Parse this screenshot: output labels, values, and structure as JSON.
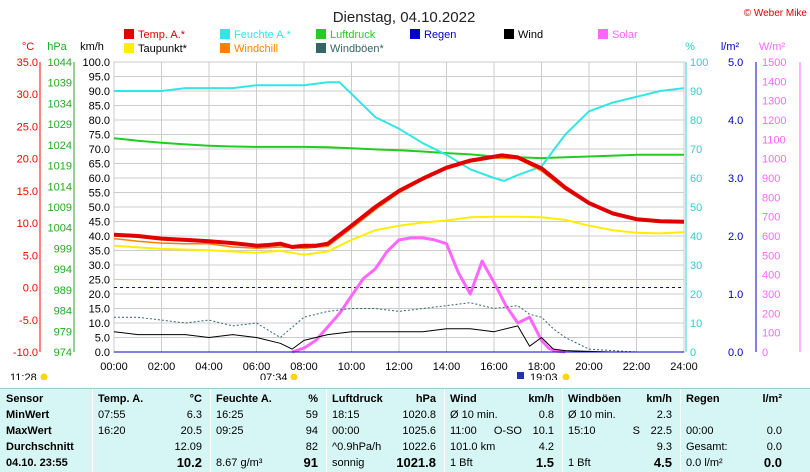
{
  "title": "Dienstag, 04.10.2022",
  "copyright": "© Weber Mike",
  "legend": [
    {
      "label": "Temp. A.*",
      "color": "#e00000"
    },
    {
      "label": "Feuchte A.*",
      "color": "#33e6e6"
    },
    {
      "label": "Luftdruck",
      "color": "#22cc22"
    },
    {
      "label": "Regen",
      "color": "#0000cc"
    },
    {
      "label": "Wind",
      "color": "#000000"
    },
    {
      "label": "Solar",
      "color": "#ff66ff"
    },
    {
      "label": "Taupunkt*",
      "color": "#ffee00"
    },
    {
      "label": "Windchill",
      "color": "#ff8000"
    },
    {
      "label": "Windböen*",
      "color": "#336666"
    }
  ],
  "axes": {
    "temp": {
      "unit": "°C",
      "color": "#ff0000",
      "ticks": [
        "35.0",
        "30.0",
        "25.0",
        "20.0",
        "15.0",
        "10.0",
        "5.0",
        "0.0",
        "-5.0",
        "-10.0"
      ]
    },
    "pressure": {
      "unit": "hPa",
      "color": "#22aa22",
      "ticks": [
        "1044",
        "1039",
        "1034",
        "1029",
        "1024",
        "1019",
        "1014",
        "1009",
        "1004",
        "999",
        "994",
        "989",
        "984",
        "979",
        "974"
      ]
    },
    "wind": {
      "unit": "km/h",
      "color": "#000000",
      "ticks": [
        "100.0",
        "95.0",
        "90.0",
        "85.0",
        "80.0",
        "75.0",
        "70.0",
        "65.0",
        "60.0",
        "55.0",
        "50.0",
        "45.0",
        "40.0",
        "35.0",
        "30.0",
        "25.0",
        "20.0",
        "15.0",
        "10.0",
        "5.0",
        "0.0"
      ]
    },
    "humidity": {
      "unit": "%",
      "color": "#33cccc",
      "ticks": [
        "100",
        "90",
        "80",
        "70",
        "60",
        "50",
        "40",
        "30",
        "20",
        "10",
        "0"
      ]
    },
    "rain": {
      "unit": "l/m²",
      "color": "#0000cc",
      "ticks": [
        "5.0",
        "4.0",
        "3.0",
        "2.0",
        "1.0",
        "0.0"
      ]
    },
    "solar": {
      "unit": "W/m²",
      "color": "#ff66ff",
      "ticks": [
        "1500",
        "1400",
        "1300",
        "1200",
        "1100",
        "1000",
        "900",
        "800",
        "700",
        "600",
        "500",
        "400",
        "300",
        "200",
        "100",
        "0"
      ]
    },
    "time": {
      "ticks": [
        "00:00",
        "02:00",
        "04:00",
        "06:00",
        "08:00",
        "10:00",
        "12:00",
        "14:00",
        "16:00",
        "18:00",
        "20:00",
        "22:00",
        "24:00"
      ]
    }
  },
  "sun": {
    "moonrise": "11:28",
    "sunrise": "07:34",
    "sunset": "19:03"
  },
  "chart_data": {
    "type": "line",
    "x_unit": "hours",
    "xlim": [
      0,
      24
    ],
    "series": [
      {
        "name": "Temp. A.*",
        "axis": "temp",
        "color": "#e00000",
        "x": [
          0,
          1,
          2,
          3,
          4,
          5,
          6,
          6.5,
          7,
          7.5,
          8,
          8.5,
          9,
          10,
          11,
          12,
          13,
          14,
          15,
          16,
          16.33,
          17,
          18,
          19,
          20,
          21,
          22,
          23,
          24
        ],
        "y": [
          8.2,
          8,
          7.6,
          7.4,
          7.2,
          6.9,
          6.5,
          6.6,
          6.8,
          6.3,
          6.5,
          6.5,
          6.8,
          9.6,
          12.5,
          15,
          16.9,
          18.6,
          19.7,
          20.3,
          20.5,
          20.2,
          18.5,
          15.5,
          13.1,
          11.5,
          10.6,
          10.3,
          10.2
        ]
      },
      {
        "name": "Taupunkt*",
        "axis": "temp",
        "color": "#ffee00",
        "x": [
          0,
          2,
          4,
          6,
          7,
          8,
          9,
          10,
          11,
          12,
          13,
          14,
          15,
          16,
          17,
          18,
          19,
          20,
          21,
          22,
          23,
          24
        ],
        "y": [
          6.5,
          6,
          5.8,
          5.4,
          5.7,
          5.1,
          5.6,
          7.4,
          8.9,
          9.6,
          10.1,
          10.4,
          10.9,
          11,
          11,
          10.9,
          10.5,
          9.6,
          8.9,
          8.5,
          8.4,
          8.6
        ]
      },
      {
        "name": "Windchill",
        "axis": "temp",
        "color": "#ff8000",
        "x": [
          0,
          1,
          2,
          3,
          4,
          5,
          6,
          7,
          8,
          9,
          10,
          11,
          12,
          13,
          14,
          15,
          16,
          17,
          18,
          19,
          20,
          21,
          22,
          23,
          24
        ],
        "y": [
          7.6,
          7.2,
          6.9,
          6.8,
          6.8,
          6.3,
          6.1,
          6.3,
          6.1,
          6.4,
          9.2,
          12.1,
          14.7,
          16.7,
          18.4,
          19.5,
          20.1,
          20,
          18.1,
          15.2,
          13,
          11.4,
          10.5,
          10.2,
          10.1
        ]
      },
      {
        "name": "Feuchte A.*",
        "axis": "humidity",
        "color": "#33e6e6",
        "x": [
          0,
          1,
          2,
          3,
          4,
          5,
          6,
          7,
          8,
          9,
          9.5,
          10,
          11,
          12,
          13,
          14,
          15,
          16,
          16.42,
          17,
          18,
          19,
          20,
          21,
          22,
          23,
          24
        ],
        "y": [
          90,
          90,
          90,
          91,
          91,
          91,
          92,
          92,
          92,
          93,
          93,
          89,
          81,
          77,
          72,
          68,
          63,
          60,
          59,
          61,
          64,
          75,
          83,
          86,
          88,
          90,
          91
        ]
      },
      {
        "name": "Luftdruck",
        "axis": "pressure",
        "color": "#22cc22",
        "x": [
          0,
          1,
          2,
          3,
          4,
          5,
          6,
          7,
          8,
          9,
          10,
          11,
          12,
          13,
          14,
          15,
          16,
          17,
          18,
          19,
          20,
          21,
          22,
          23,
          24
        ],
        "y": [
          1025.6,
          1025,
          1024.5,
          1024.1,
          1023.8,
          1023.6,
          1023.5,
          1023.5,
          1023.5,
          1023.4,
          1023.2,
          1022.9,
          1022.7,
          1022.4,
          1022,
          1021.7,
          1021.2,
          1021,
          1020.8,
          1021,
          1021.2,
          1021.4,
          1021.6,
          1021.6,
          1021.6
        ]
      },
      {
        "name": "Wind",
        "axis": "wind",
        "color": "#000000",
        "x": [
          0,
          1,
          2,
          3,
          4,
          5,
          6,
          7,
          7.5,
          8,
          9,
          10,
          11,
          12,
          13,
          14,
          15,
          16,
          17,
          17.5,
          18,
          18.5,
          19,
          20,
          21,
          22,
          23,
          24
        ],
        "y": [
          7,
          6,
          6,
          6,
          5,
          6,
          5,
          3,
          1,
          4,
          6,
          7,
          7,
          7,
          7,
          8,
          8,
          7,
          9,
          2,
          5,
          1,
          0.5,
          0.2,
          0,
          0,
          0,
          0
        ]
      },
      {
        "name": "Windböen*",
        "axis": "wind",
        "color": "#336666",
        "x": [
          0,
          1,
          2,
          3,
          4,
          5,
          6,
          7,
          8,
          9,
          10,
          11,
          12,
          13,
          14,
          15,
          16,
          17,
          17.5,
          18,
          18.5,
          19,
          20,
          21,
          22,
          23,
          24
        ],
        "y": [
          12,
          12,
          11,
          10,
          11,
          9,
          10,
          5,
          12,
          14,
          15,
          15,
          14,
          15,
          16,
          17,
          15,
          16,
          13,
          12,
          8,
          5,
          1,
          0.5,
          0,
          0,
          0
        ]
      },
      {
        "name": "Solar",
        "axis": "solar",
        "color": "#ff66ff",
        "x": [
          7.5,
          8,
          8.5,
          9,
          9.5,
          10,
          10.5,
          11,
          11.5,
          12,
          12.5,
          13,
          13.5,
          14,
          14.5,
          15,
          15.5,
          16,
          16.5,
          17,
          17.5,
          18,
          18.3,
          18.6,
          19
        ],
        "y": [
          0,
          20,
          60,
          130,
          200,
          290,
          380,
          430,
          520,
          580,
          590,
          590,
          580,
          560,
          410,
          300,
          470,
          360,
          240,
          150,
          180,
          60,
          20,
          5,
          0
        ]
      },
      {
        "name": "Regen",
        "axis": "rain",
        "color": "#0000cc",
        "x": [
          0,
          24
        ],
        "y": [
          0,
          0
        ]
      }
    ]
  },
  "stats": {
    "columns": [
      {
        "header": "Sensor",
        "rows": [
          "MinWert",
          "MaxWert",
          "Durchschnitt",
          "04.10. 23:55"
        ]
      },
      {
        "header": "Temp. A.",
        "unit": "°C",
        "rows": [
          [
            "07:55",
            "6.3"
          ],
          [
            "16:20",
            "20.5"
          ],
          [
            "",
            "12.09"
          ],
          [
            "",
            "10.2"
          ]
        ]
      },
      {
        "header": "Feuchte A.",
        "unit": "%",
        "rows": [
          [
            "16:25",
            "59"
          ],
          [
            "09:25",
            "94"
          ],
          [
            "",
            "82"
          ],
          [
            "8.67 g/m³",
            "91"
          ]
        ]
      },
      {
        "header": "Luftdruck",
        "unit": "hPa",
        "rows": [
          [
            "18:15",
            "1020.8"
          ],
          [
            "00:00",
            "1025.6"
          ],
          [
            "^0.9hPa/h",
            "1022.6"
          ],
          [
            "sonnig",
            "1021.8"
          ]
        ]
      },
      {
        "header": "Wind",
        "unit": "km/h",
        "rows": [
          [
            "Ø 10 min.",
            "",
            "0.8"
          ],
          [
            "11:00",
            "O-SO",
            "10.1"
          ],
          [
            "101.0 km",
            "",
            "4.2"
          ],
          [
            "1 Bft",
            "",
            "1.5"
          ]
        ]
      },
      {
        "header": "Windböen",
        "unit": "km/h",
        "rows": [
          [
            "Ø 10 min.",
            "",
            "2.3"
          ],
          [
            "15:10",
            "S",
            "22.5"
          ],
          [
            "",
            "",
            "9.3"
          ],
          [
            "1 Bft",
            "",
            "4.5"
          ]
        ]
      },
      {
        "header": "Regen",
        "unit": "l/m²",
        "rows": [
          [
            "",
            ""
          ],
          [
            "00:00",
            "0.0"
          ],
          [
            "Gesamt:",
            "0.0"
          ],
          [
            "0.0 l/m²",
            "0.0"
          ]
        ]
      }
    ]
  }
}
